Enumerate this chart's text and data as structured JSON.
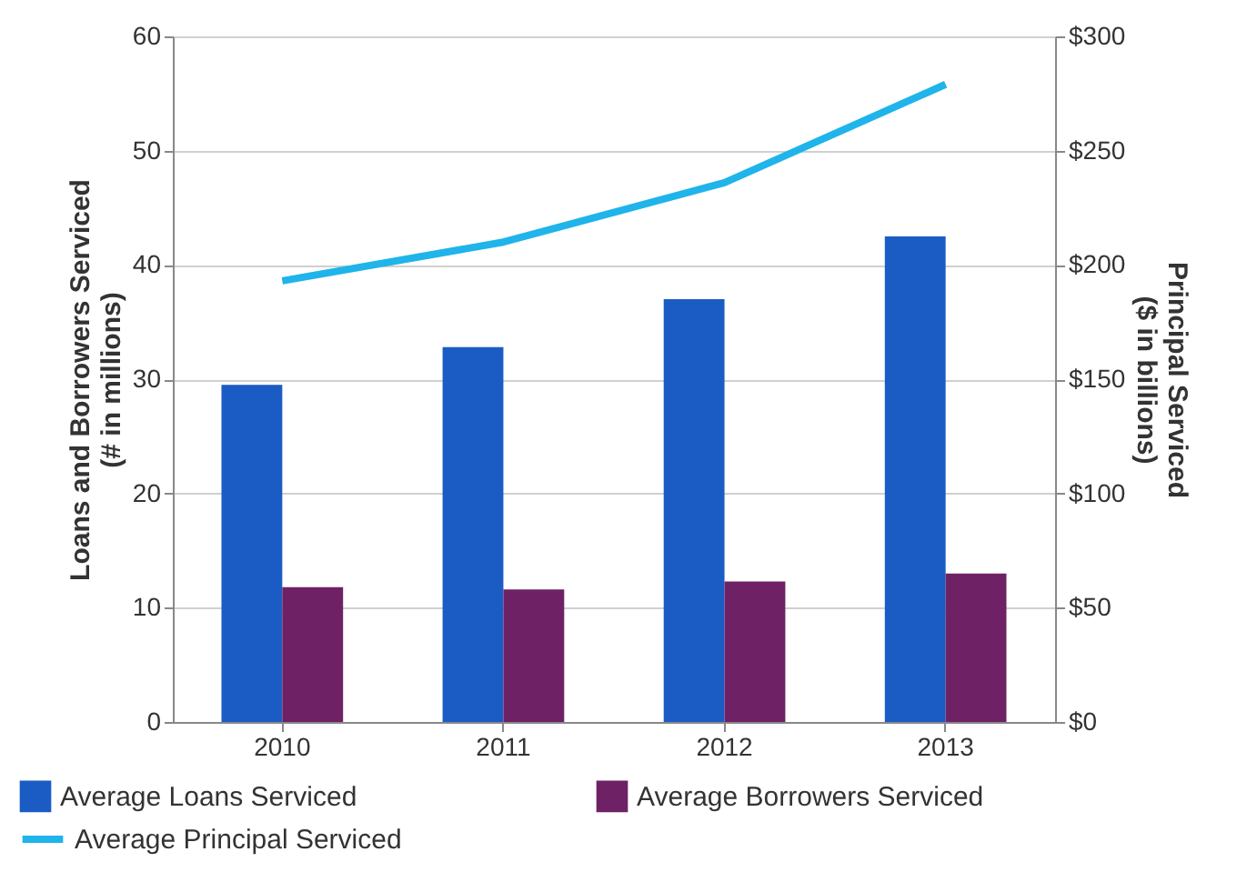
{
  "chart_data": {
    "type": "bar",
    "categories": [
      "2010",
      "2011",
      "2012",
      "2013"
    ],
    "ylabel": "Loans and Borrowers Serviced (# in millions)",
    "y2label": "Principal Serviced ($ in billions)",
    "ylim": [
      0,
      60
    ],
    "yticks": [
      0,
      10,
      20,
      30,
      40,
      50,
      60
    ],
    "y2lim": [
      0,
      300
    ],
    "y2ticks": [
      {
        "value": 0,
        "label": "$0"
      },
      {
        "value": 50,
        "label": "$50"
      },
      {
        "value": 100,
        "label": "$100"
      },
      {
        "value": 150,
        "label": "$150"
      },
      {
        "value": 200,
        "label": "$200"
      },
      {
        "value": 250,
        "label": "$250"
      },
      {
        "value": 300,
        "label": "$300"
      }
    ],
    "grid": "y",
    "legend": "bottom",
    "series": [
      {
        "name": "Average Loans Serviced",
        "color": "#1a5cc4",
        "values": [
          29.5,
          32.8,
          37.0,
          42.5
        ]
      },
      {
        "name": "Average Borrowers Serviced",
        "color": "#6e2265",
        "values": [
          11.8,
          11.6,
          12.3,
          13.0
        ]
      },
      {
        "name": "Average Principal Serviced",
        "type": "line",
        "axis": "y2",
        "color": "#1fb4ea",
        "values": [
          193,
          210,
          236,
          279
        ]
      }
    ]
  }
}
